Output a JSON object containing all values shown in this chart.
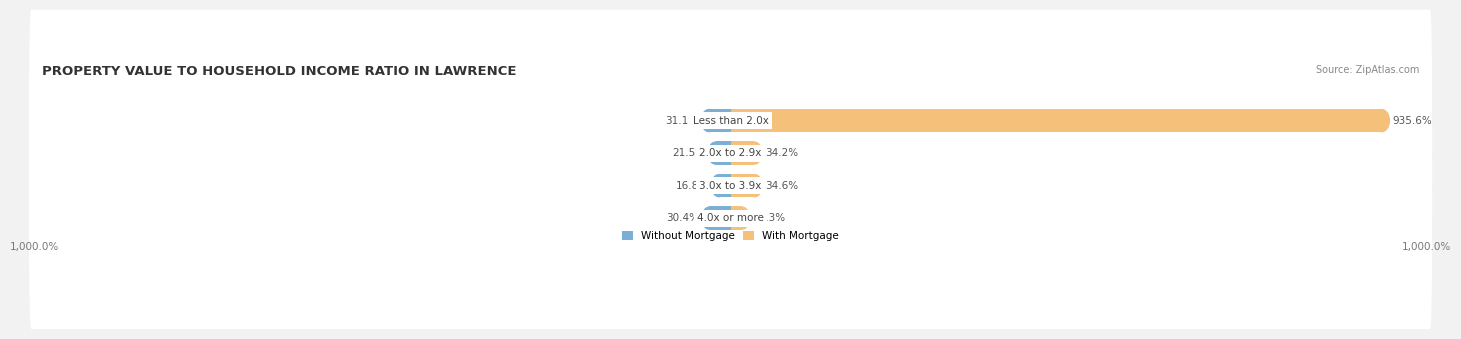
{
  "title": "PROPERTY VALUE TO HOUSEHOLD INCOME RATIO IN LAWRENCE",
  "source": "Source: ZipAtlas.com",
  "categories": [
    "Less than 2.0x",
    "2.0x to 2.9x",
    "3.0x to 3.9x",
    "4.0x or more"
  ],
  "without_mortgage": [
    31.1,
    21.5,
    16.8,
    30.4
  ],
  "with_mortgage": [
    935.6,
    34.2,
    34.6,
    16.3
  ],
  "bar_color_left": "#7bafd4",
  "bar_color_right": "#f5c07a",
  "bg_color": "#f2f2f2",
  "row_bg_color": "#ffffff",
  "axis_max": 1000.0,
  "x_tick_label_left": "1,000.0%",
  "x_tick_label_right": "1,000.0%",
  "legend_labels": [
    "Without Mortgage",
    "With Mortgage"
  ],
  "title_fontsize": 9.5,
  "label_fontsize": 7.5,
  "source_fontsize": 7.0
}
